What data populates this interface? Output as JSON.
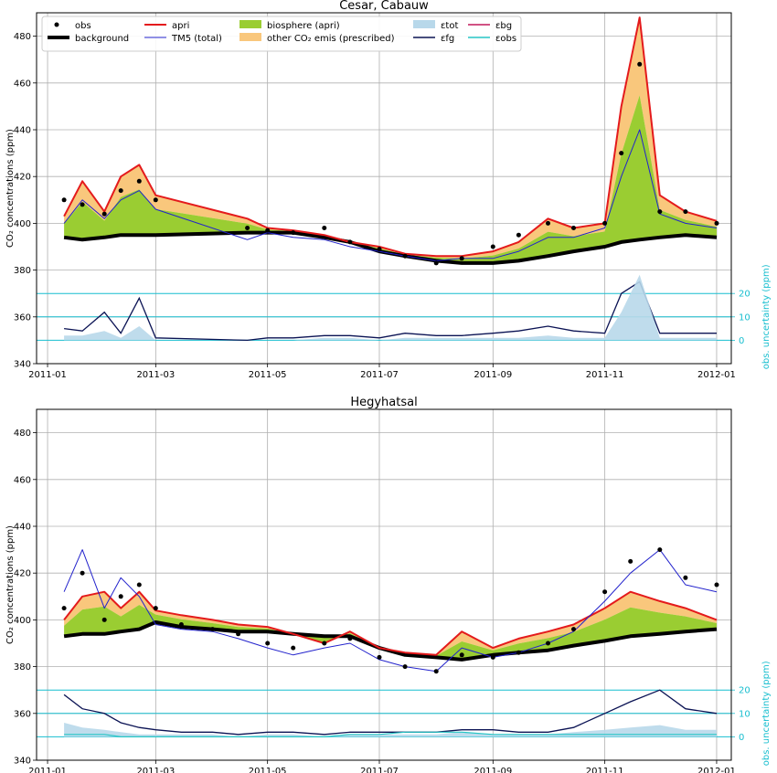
{
  "figure": {
    "x_ticks": [
      "2011-01",
      "2011-03",
      "2011-05",
      "2011-07",
      "2011-09",
      "2011-11",
      "2012-01"
    ],
    "y_label": "CO₂ concentrations (ppm)",
    "y2_label": "obs. uncertainty (ppm)",
    "colors": {
      "obs": "#000000",
      "background": "#000000",
      "apri": "#e41a1c",
      "tm5": "#2222cc",
      "biosphere": "#9acd32",
      "other_emis": "#f9c77c",
      "eps_tot": "#b8d8ea",
      "eps_fg": "#0b1354",
      "eps_bg": "#c2185b",
      "eps_obs": "#26c6c6",
      "uncertainty_axis": "#17becf"
    }
  },
  "legend": {
    "obs": "obs",
    "background": "background",
    "apri": "apri",
    "tm5": "TM5 (total)",
    "biosphere": "biosphere (apri)",
    "other_emis": "other CO₂ emis (prescribed)",
    "eps_tot": "εtot",
    "eps_fg": "εfg",
    "eps_bg": "εbg",
    "eps_obs": "εobs"
  },
  "chart_data": [
    {
      "type": "line",
      "title": "Cesar, Cabauw",
      "xlabel": "",
      "ylabel": "CO₂ concentrations (ppm)",
      "ylim": [
        340,
        490
      ],
      "y_ticks": [
        340,
        360,
        380,
        400,
        420,
        440,
        460,
        480
      ],
      "y2_ticks": [
        0,
        10,
        20
      ],
      "grid": true,
      "legend_position": "top",
      "x_dates": [
        "2011-01-10",
        "2011-01-20",
        "2011-02-01",
        "2011-02-10",
        "2011-02-20",
        "2011-03-01",
        "2011-04-20",
        "2011-05-01",
        "2011-05-15",
        "2011-06-01",
        "2011-06-15",
        "2011-07-01",
        "2011-07-15",
        "2011-08-01",
        "2011-08-15",
        "2011-09-01",
        "2011-09-15",
        "2011-10-01",
        "2011-10-15",
        "2011-11-01",
        "2011-11-10",
        "2011-11-20",
        "2011-12-01",
        "2011-12-15",
        "2012-01-01"
      ],
      "series": [
        {
          "name": "background",
          "values": [
            394,
            393,
            394,
            395,
            395,
            395,
            396,
            396,
            396,
            394,
            392,
            388,
            386,
            384,
            383,
            383,
            384,
            386,
            388,
            390,
            392,
            393,
            394,
            395,
            394
          ]
        },
        {
          "name": "apri",
          "values": [
            403,
            418,
            405,
            420,
            425,
            412,
            402,
            398,
            397,
            395,
            392,
            390,
            387,
            386,
            386,
            388,
            392,
            402,
            398,
            400,
            450,
            488,
            412,
            405,
            401
          ]
        },
        {
          "name": "TM5 (total)",
          "values": [
            400,
            410,
            402,
            410,
            414,
            406,
            393,
            396,
            394,
            393,
            390,
            388,
            386,
            384,
            385,
            385,
            388,
            394,
            394,
            398,
            420,
            440,
            404,
            400,
            398
          ]
        },
        {
          "name": "obs",
          "values": [
            410,
            408,
            404,
            414,
            418,
            410,
            398,
            397,
            396,
            398,
            392,
            389,
            386,
            383,
            385,
            390,
            395,
            400,
            398,
            400,
            430,
            468,
            405,
            405,
            400
          ]
        }
      ],
      "uncertainty_series": [
        {
          "name": "εfg",
          "values": [
            5,
            4,
            12,
            3,
            18,
            1,
            0,
            1,
            1,
            2,
            2,
            1,
            3,
            2,
            2,
            3,
            4,
            6,
            4,
            3,
            20,
            25,
            3,
            3,
            3
          ]
        },
        {
          "name": "εtot",
          "values": [
            2,
            2,
            4,
            1,
            6,
            0,
            0,
            0,
            0,
            1,
            1,
            0,
            1,
            1,
            1,
            1,
            1,
            2,
            1,
            1,
            12,
            28,
            1,
            1,
            1
          ]
        }
      ]
    },
    {
      "type": "line",
      "title": "Hegyhatsal",
      "xlabel": "",
      "ylabel": "CO₂ concentrations (ppm)",
      "ylim": [
        340,
        490
      ],
      "y_ticks": [
        340,
        360,
        380,
        400,
        420,
        440,
        460,
        480
      ],
      "y2_ticks": [
        0,
        10,
        20
      ],
      "grid": true,
      "legend_position": "none",
      "x_dates": [
        "2011-01-10",
        "2011-01-20",
        "2011-02-01",
        "2011-02-10",
        "2011-02-20",
        "2011-03-01",
        "2011-03-15",
        "2011-04-01",
        "2011-04-15",
        "2011-05-01",
        "2011-05-15",
        "2011-06-01",
        "2011-06-15",
        "2011-07-01",
        "2011-07-15",
        "2011-08-01",
        "2011-08-15",
        "2011-09-01",
        "2011-09-15",
        "2011-10-01",
        "2011-10-15",
        "2011-11-01",
        "2011-11-15",
        "2011-12-01",
        "2011-12-15",
        "2012-01-01"
      ],
      "series": [
        {
          "name": "background",
          "values": [
            393,
            394,
            394,
            395,
            396,
            399,
            397,
            396,
            395,
            395,
            394,
            393,
            393,
            388,
            385,
            384,
            383,
            385,
            386,
            387,
            389,
            391,
            393,
            394,
            395,
            396
          ]
        },
        {
          "name": "apri",
          "values": [
            400,
            410,
            412,
            405,
            412,
            404,
            402,
            400,
            398,
            397,
            394,
            390,
            395,
            388,
            386,
            385,
            395,
            388,
            392,
            395,
            398,
            405,
            412,
            408,
            405,
            400
          ]
        },
        {
          "name": "TM5 (total)",
          "values": [
            412,
            430,
            405,
            418,
            410,
            398,
            396,
            395,
            392,
            388,
            385,
            388,
            390,
            383,
            380,
            378,
            388,
            384,
            386,
            390,
            395,
            408,
            420,
            430,
            415,
            412
          ]
        },
        {
          "name": "obs",
          "values": [
            405,
            420,
            400,
            410,
            415,
            405,
            398,
            396,
            394,
            390,
            388,
            390,
            392,
            384,
            380,
            378,
            385,
            384,
            386,
            390,
            396,
            412,
            425,
            430,
            418,
            415
          ]
        }
      ],
      "uncertainty_series": [
        {
          "name": "εfg",
          "values": [
            18,
            12,
            10,
            6,
            4,
            3,
            2,
            2,
            1,
            2,
            2,
            1,
            2,
            2,
            2,
            2,
            3,
            3,
            2,
            2,
            4,
            10,
            15,
            20,
            12,
            10
          ]
        },
        {
          "name": "εtot",
          "values": [
            6,
            4,
            3,
            2,
            1,
            1,
            1,
            1,
            0,
            1,
            1,
            0,
            1,
            1,
            1,
            1,
            2,
            1,
            1,
            1,
            2,
            3,
            4,
            5,
            3,
            3
          ]
        },
        {
          "name": "εobs",
          "values": [
            1,
            1,
            1,
            0,
            0,
            0,
            0,
            0,
            0,
            0,
            0,
            0,
            1,
            1,
            2,
            2,
            2,
            1,
            1,
            1,
            1,
            1,
            1,
            1,
            1,
            1
          ]
        }
      ]
    }
  ]
}
